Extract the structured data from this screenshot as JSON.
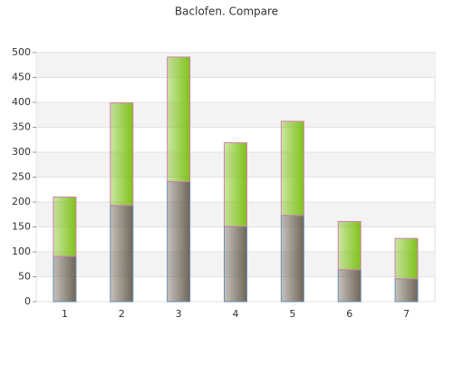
{
  "chart_data": {
    "type": "stacked_bar",
    "title": "Baclofen. Compare",
    "categories": [
      "1",
      "2",
      "3",
      "4",
      "5",
      "6",
      "7"
    ],
    "series": [
      {
        "color": "#6f6658",
        "values": [
          91,
          193,
          241,
          151,
          173,
          64,
          46
        ]
      },
      {
        "color": "#7fc21a",
        "values": [
          119,
          206,
          250,
          168,
          189,
          97,
          81
        ]
      }
    ],
    "ylim": [
      0,
      500
    ],
    "yticks": [
      0,
      50,
      100,
      150,
      200,
      250,
      300,
      350,
      400,
      450,
      500
    ],
    "grid": true
  }
}
